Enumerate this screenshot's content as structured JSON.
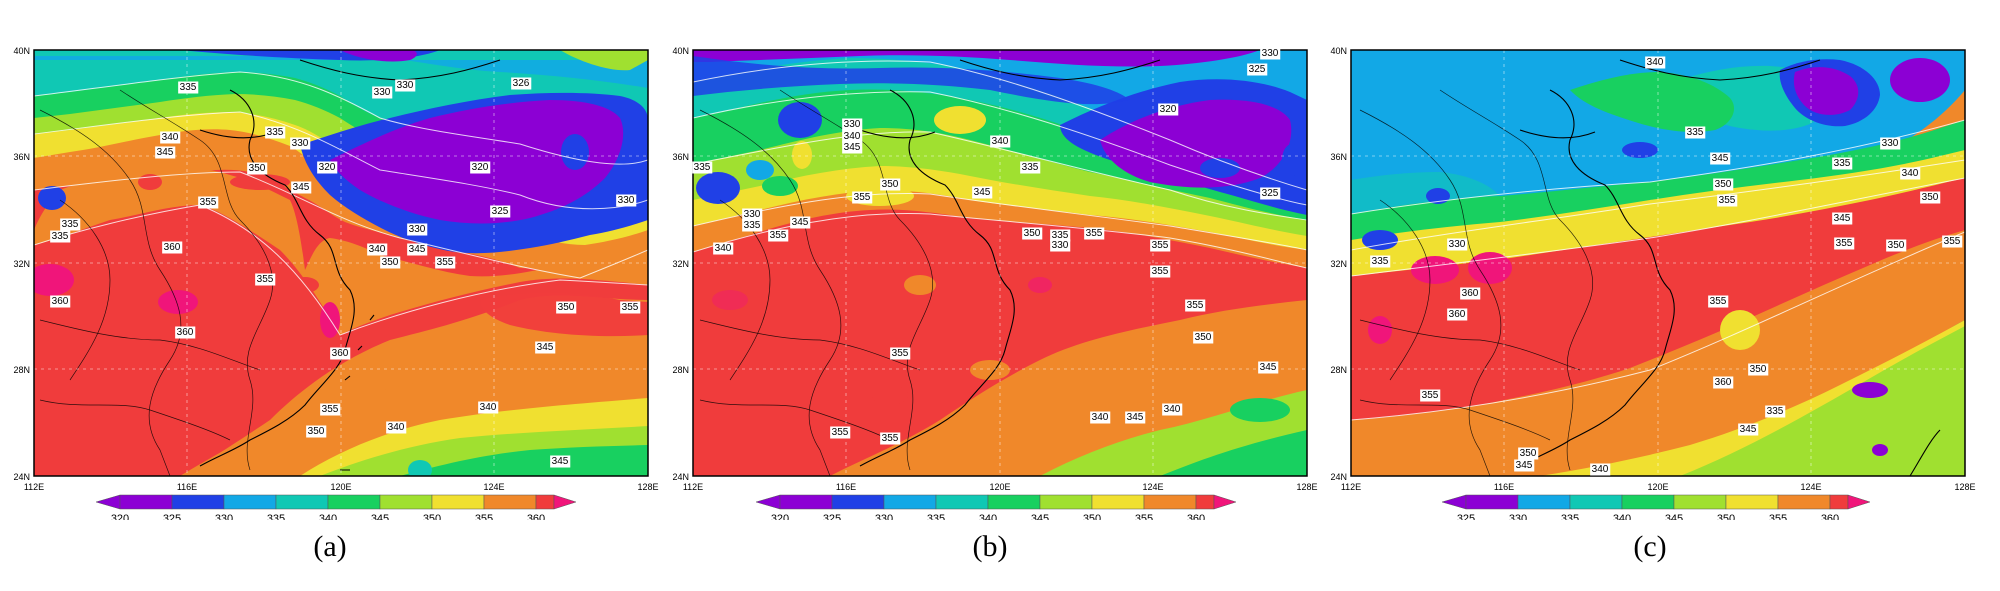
{
  "figure": {
    "panels": [
      {
        "caption": "(a)",
        "lat_labels": [
          "40N",
          "36N",
          "32N",
          "28N",
          "24N"
        ],
        "lon_labels": [
          "112E",
          "116E",
          "120E",
          "124E",
          "128E"
        ],
        "colorbar_ticks": [
          "320",
          "325",
          "330",
          "335",
          "340",
          "345",
          "350",
          "355",
          "360"
        ],
        "contour_labels": [
          "335",
          "330",
          "330",
          "326",
          "335",
          "330",
          "340",
          "345",
          "350",
          "320",
          "320",
          "355",
          "345",
          "330",
          "325",
          "330",
          "335",
          "335",
          "340",
          "345",
          "350",
          "355",
          "360",
          "355",
          "360",
          "360",
          "360",
          "355",
          "350",
          "345",
          "340",
          "355",
          "350",
          "340",
          "345"
        ]
      },
      {
        "caption": "(b)",
        "lat_labels": [
          "40N",
          "36N",
          "32N",
          "28N",
          "24N"
        ],
        "lon_labels": [
          "112E",
          "116E",
          "120E",
          "124E",
          "128E"
        ],
        "colorbar_ticks": [
          "320",
          "325",
          "330",
          "335",
          "340",
          "345",
          "350",
          "355",
          "360"
        ],
        "contour_labels": [
          "330",
          "325",
          "320",
          "335",
          "330",
          "340",
          "345",
          "340",
          "335",
          "350",
          "355",
          "345",
          "355",
          "330",
          "335",
          "340",
          "345",
          "350",
          "355",
          "325",
          "335",
          "330",
          "355",
          "355",
          "350",
          "345",
          "355",
          "355",
          "340",
          "345",
          "340",
          "355",
          "355"
        ]
      },
      {
        "caption": "(c)",
        "lat_labels": [
          "40N",
          "36N",
          "32N",
          "28N",
          "24N"
        ],
        "lon_labels": [
          "112E",
          "116E",
          "120E",
          "124E",
          "128E"
        ],
        "colorbar_ticks": [
          "325",
          "330",
          "335",
          "340",
          "345",
          "350",
          "355",
          "360"
        ],
        "contour_labels": [
          "340",
          "335",
          "330",
          "335",
          "345",
          "340",
          "350",
          "355",
          "345",
          "350",
          "355",
          "355",
          "350",
          "330",
          "335",
          "360",
          "360",
          "355",
          "350",
          "360",
          "355",
          "345",
          "335",
          "350",
          "345",
          "340"
        ]
      }
    ],
    "colors": {
      "320": "#8c00d4",
      "325": "#2040e6",
      "330": "#12a8e6",
      "335": "#10c8b4",
      "340": "#18d060",
      "345": "#a0e030",
      "350": "#f0e030",
      "355": "#f0882a",
      "360": "#f03c3c",
      "over": "#f0157a"
    }
  }
}
